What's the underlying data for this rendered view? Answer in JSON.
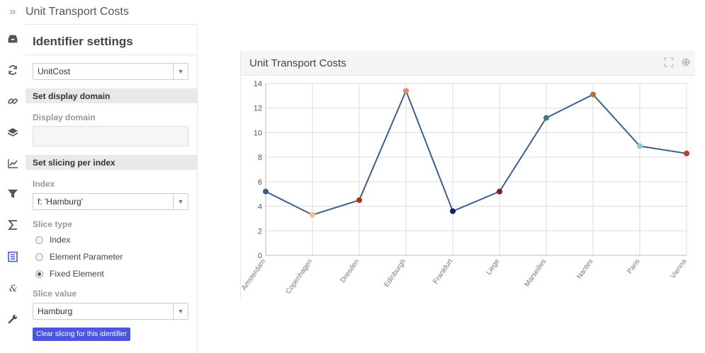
{
  "app": {
    "title": "Unit Transport Costs",
    "collapse_glyph": "»"
  },
  "rail": {
    "icons": [
      "inbox-icon",
      "refresh-icon",
      "link-icon",
      "layers-icon",
      "line-chart-icon",
      "filter-icon",
      "sigma-icon",
      "document-icon",
      "ampersand-icon",
      "wrench-icon"
    ],
    "active": "document-icon"
  },
  "panel": {
    "heading": "Identifier settings",
    "identifier_select": {
      "value": "UnitCost"
    },
    "display_domain": {
      "section": "Set display domain",
      "label": "Display domain",
      "value": ""
    },
    "slicing": {
      "section": "Set slicing per index",
      "index_label": "Index",
      "index_value": "f: 'Hamburg'",
      "slice_type_label": "Slice type",
      "options": [
        {
          "label": "Index",
          "selected": false
        },
        {
          "label": "Element Parameter",
          "selected": false
        },
        {
          "label": "Fixed Element",
          "selected": true
        }
      ],
      "slice_value_label": "Slice value",
      "slice_value": "Hamburg",
      "clear_button": "Clear slicing for this identifier"
    }
  },
  "widget": {
    "title": "Unit Transport Costs"
  },
  "chart_data": {
    "type": "line",
    "categories": [
      "Amsterdam",
      "Copenhagen",
      "Dresden",
      "Edinburgh",
      "Frankfurt",
      "Liege",
      "Marseilles",
      "Nantes",
      "Paris",
      "Vienna"
    ],
    "values": [
      5.2,
      3.3,
      4.5,
      13.4,
      3.6,
      5.2,
      11.2,
      13.1,
      8.9,
      8.3
    ],
    "point_colors": [
      "#3b5f8a",
      "#f2c08e",
      "#b32c1b",
      "#e8866a",
      "#1b1b5e",
      "#7a1e2b",
      "#3f7a6a",
      "#a8763a",
      "#8fc1e3",
      "#c0392b"
    ],
    "line_color": "#3d5f8c",
    "ylim": [
      0,
      14
    ],
    "yticks": [
      0,
      2,
      4,
      6,
      8,
      10,
      12,
      14
    ],
    "grid": true
  }
}
